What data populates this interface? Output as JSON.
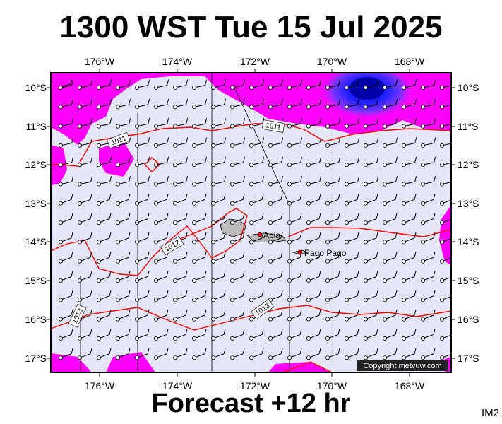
{
  "header": {
    "title": "1300 WST Tue 15 Jul 2025"
  },
  "footer": {
    "forecast": "Forecast +12 hr",
    "image_id": "IM2",
    "copyright": "Copyright metvuw.com"
  },
  "map": {
    "lon_labels": [
      "176°W",
      "174°W",
      "172°W",
      "170°W",
      "168°W"
    ],
    "lat_labels": [
      "10°S",
      "11°S",
      "12°S",
      "13°S",
      "14°S",
      "15°S",
      "16°S",
      "17°S"
    ],
    "isobar_labels": [
      "1011",
      "1011",
      "1012",
      "1013",
      "1013"
    ],
    "places": [
      "Apia",
      "Pago Pago"
    ],
    "colors": {
      "ocean": "#e6e6fa",
      "rain_magenta": "#ff00ff",
      "rain_blue": "#0000ff",
      "isobar": "#ff0000"
    }
  }
}
